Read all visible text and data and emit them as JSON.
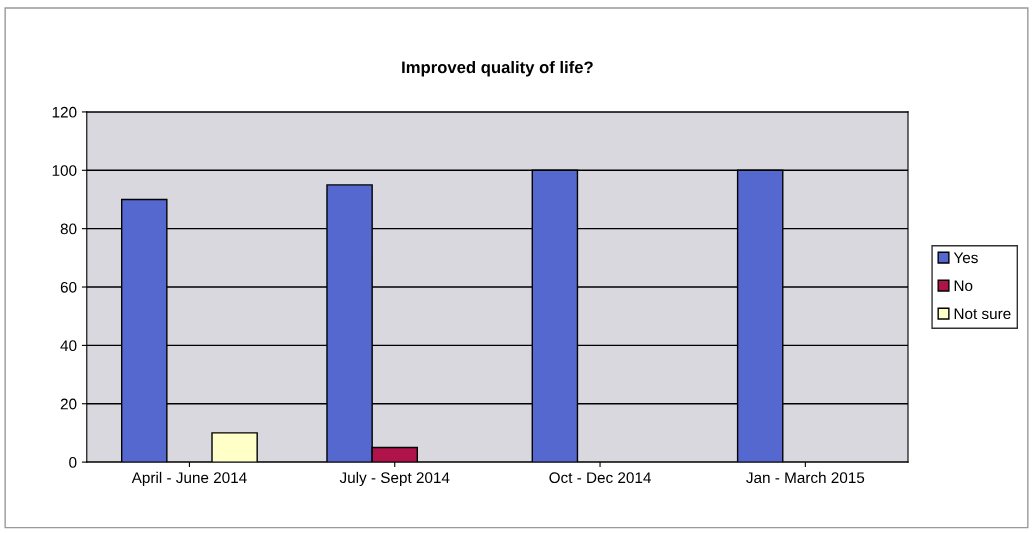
{
  "chart_data": {
    "type": "bar",
    "title": "Improved quality of life?",
    "categories": [
      "April - June 2014",
      "July - Sept 2014",
      "Oct - Dec 2014",
      "Jan - March 2015"
    ],
    "series": [
      {
        "name": "Yes",
        "color": "#5468d0",
        "values": [
          90,
          95,
          100,
          100
        ]
      },
      {
        "name": "No",
        "color": "#b0124a",
        "values": [
          null,
          5,
          null,
          null
        ]
      },
      {
        "name": "Not sure",
        "color": "#ffffc8",
        "values": [
          10,
          null,
          null,
          null
        ]
      }
    ],
    "ylim": [
      0,
      120
    ],
    "yticks": [
      0,
      20,
      40,
      60,
      80,
      100,
      120
    ],
    "grid": "y",
    "legend": "right"
  }
}
